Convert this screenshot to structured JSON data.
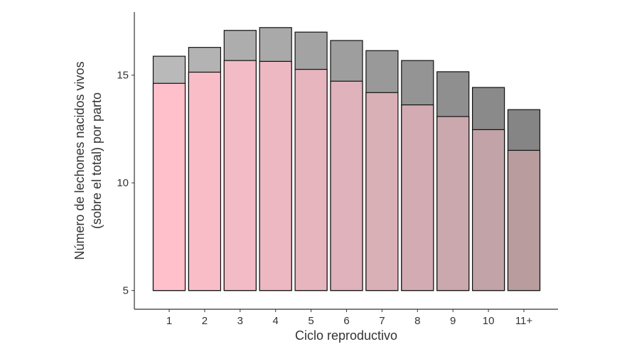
{
  "chart_data": {
    "type": "bar",
    "stacking": "overlay",
    "categories": [
      "1",
      "2",
      "3",
      "4",
      "5",
      "6",
      "7",
      "8",
      "9",
      "10",
      "11+"
    ],
    "series": [
      {
        "values": [
          15.88,
          16.29,
          17.08,
          17.21,
          17.0,
          16.61,
          16.14,
          15.68,
          15.16,
          14.43,
          13.4
        ],
        "colors": [
          "#b9b9b9",
          "#b3b3b3",
          "#adadad",
          "#a9a9a9",
          "#a3a3a3",
          "#9e9e9e",
          "#999999",
          "#949494",
          "#8f8f8f",
          "#8a8a8a",
          "#858585"
        ]
      },
      {
        "values": [
          14.62,
          15.14,
          15.68,
          15.64,
          15.27,
          14.72,
          14.19,
          13.62,
          13.08,
          12.47,
          11.51
        ],
        "colors": [
          "#ffc0cb",
          "#f9bdc7",
          "#f2bbc5",
          "#edb8c2",
          "#e6b5be",
          "#e0b2bb",
          "#dab0b7",
          "#d3acb3",
          "#cba8ae",
          "#c2a3a8",
          "#b89c9e"
        ]
      }
    ],
    "bar_base": 5,
    "xlabel": "Ciclo reproductivo",
    "ylabel": [
      "Número de lechones nacidos vivos",
      "(sobre el total) por parto"
    ],
    "yticks": [
      5,
      10,
      15
    ],
    "ylim": [
      4.13,
      17.93
    ],
    "grid": false
  }
}
